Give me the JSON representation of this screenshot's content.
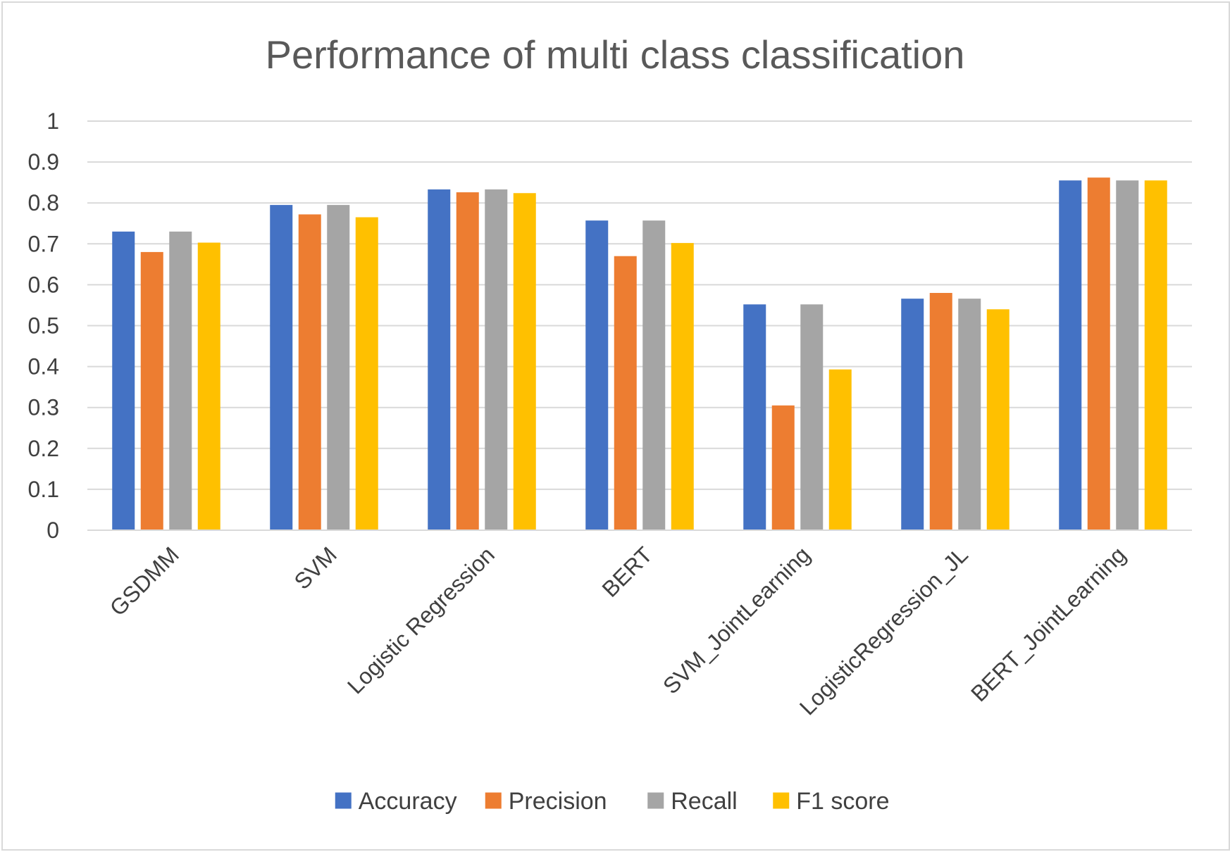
{
  "chart_data": {
    "type": "bar",
    "title": "Performance of multi class classification",
    "xlabel": "",
    "ylabel": "",
    "ylim": [
      0,
      1
    ],
    "yticks": [
      "0",
      "0.1",
      "0.2",
      "0.3",
      "0.4",
      "0.5",
      "0.6",
      "0.7",
      "0.8",
      "0.9",
      "1"
    ],
    "grid": true,
    "legend_position": "bottom",
    "categories": [
      "GSDMM",
      "SVM",
      "Logistic Regression",
      "BERT",
      "SVM_JointLearning",
      "LogisticRegression_JL",
      "BERT_JointLearning"
    ],
    "series": [
      {
        "name": "Accuracy",
        "color": "#4472c4",
        "values": [
          0.73,
          0.795,
          0.833,
          0.757,
          0.552,
          0.566,
          0.855
        ]
      },
      {
        "name": "Precision",
        "color": "#ed7d31",
        "values": [
          0.68,
          0.772,
          0.826,
          0.67,
          0.305,
          0.58,
          0.862
        ]
      },
      {
        "name": "Recall",
        "color": "#a5a5a5",
        "values": [
          0.73,
          0.795,
          0.833,
          0.757,
          0.552,
          0.566,
          0.855
        ]
      },
      {
        "name": "F1 score",
        "color": "#ffc000",
        "values": [
          0.703,
          0.765,
          0.824,
          0.702,
          0.393,
          0.54,
          0.855
        ]
      }
    ]
  }
}
